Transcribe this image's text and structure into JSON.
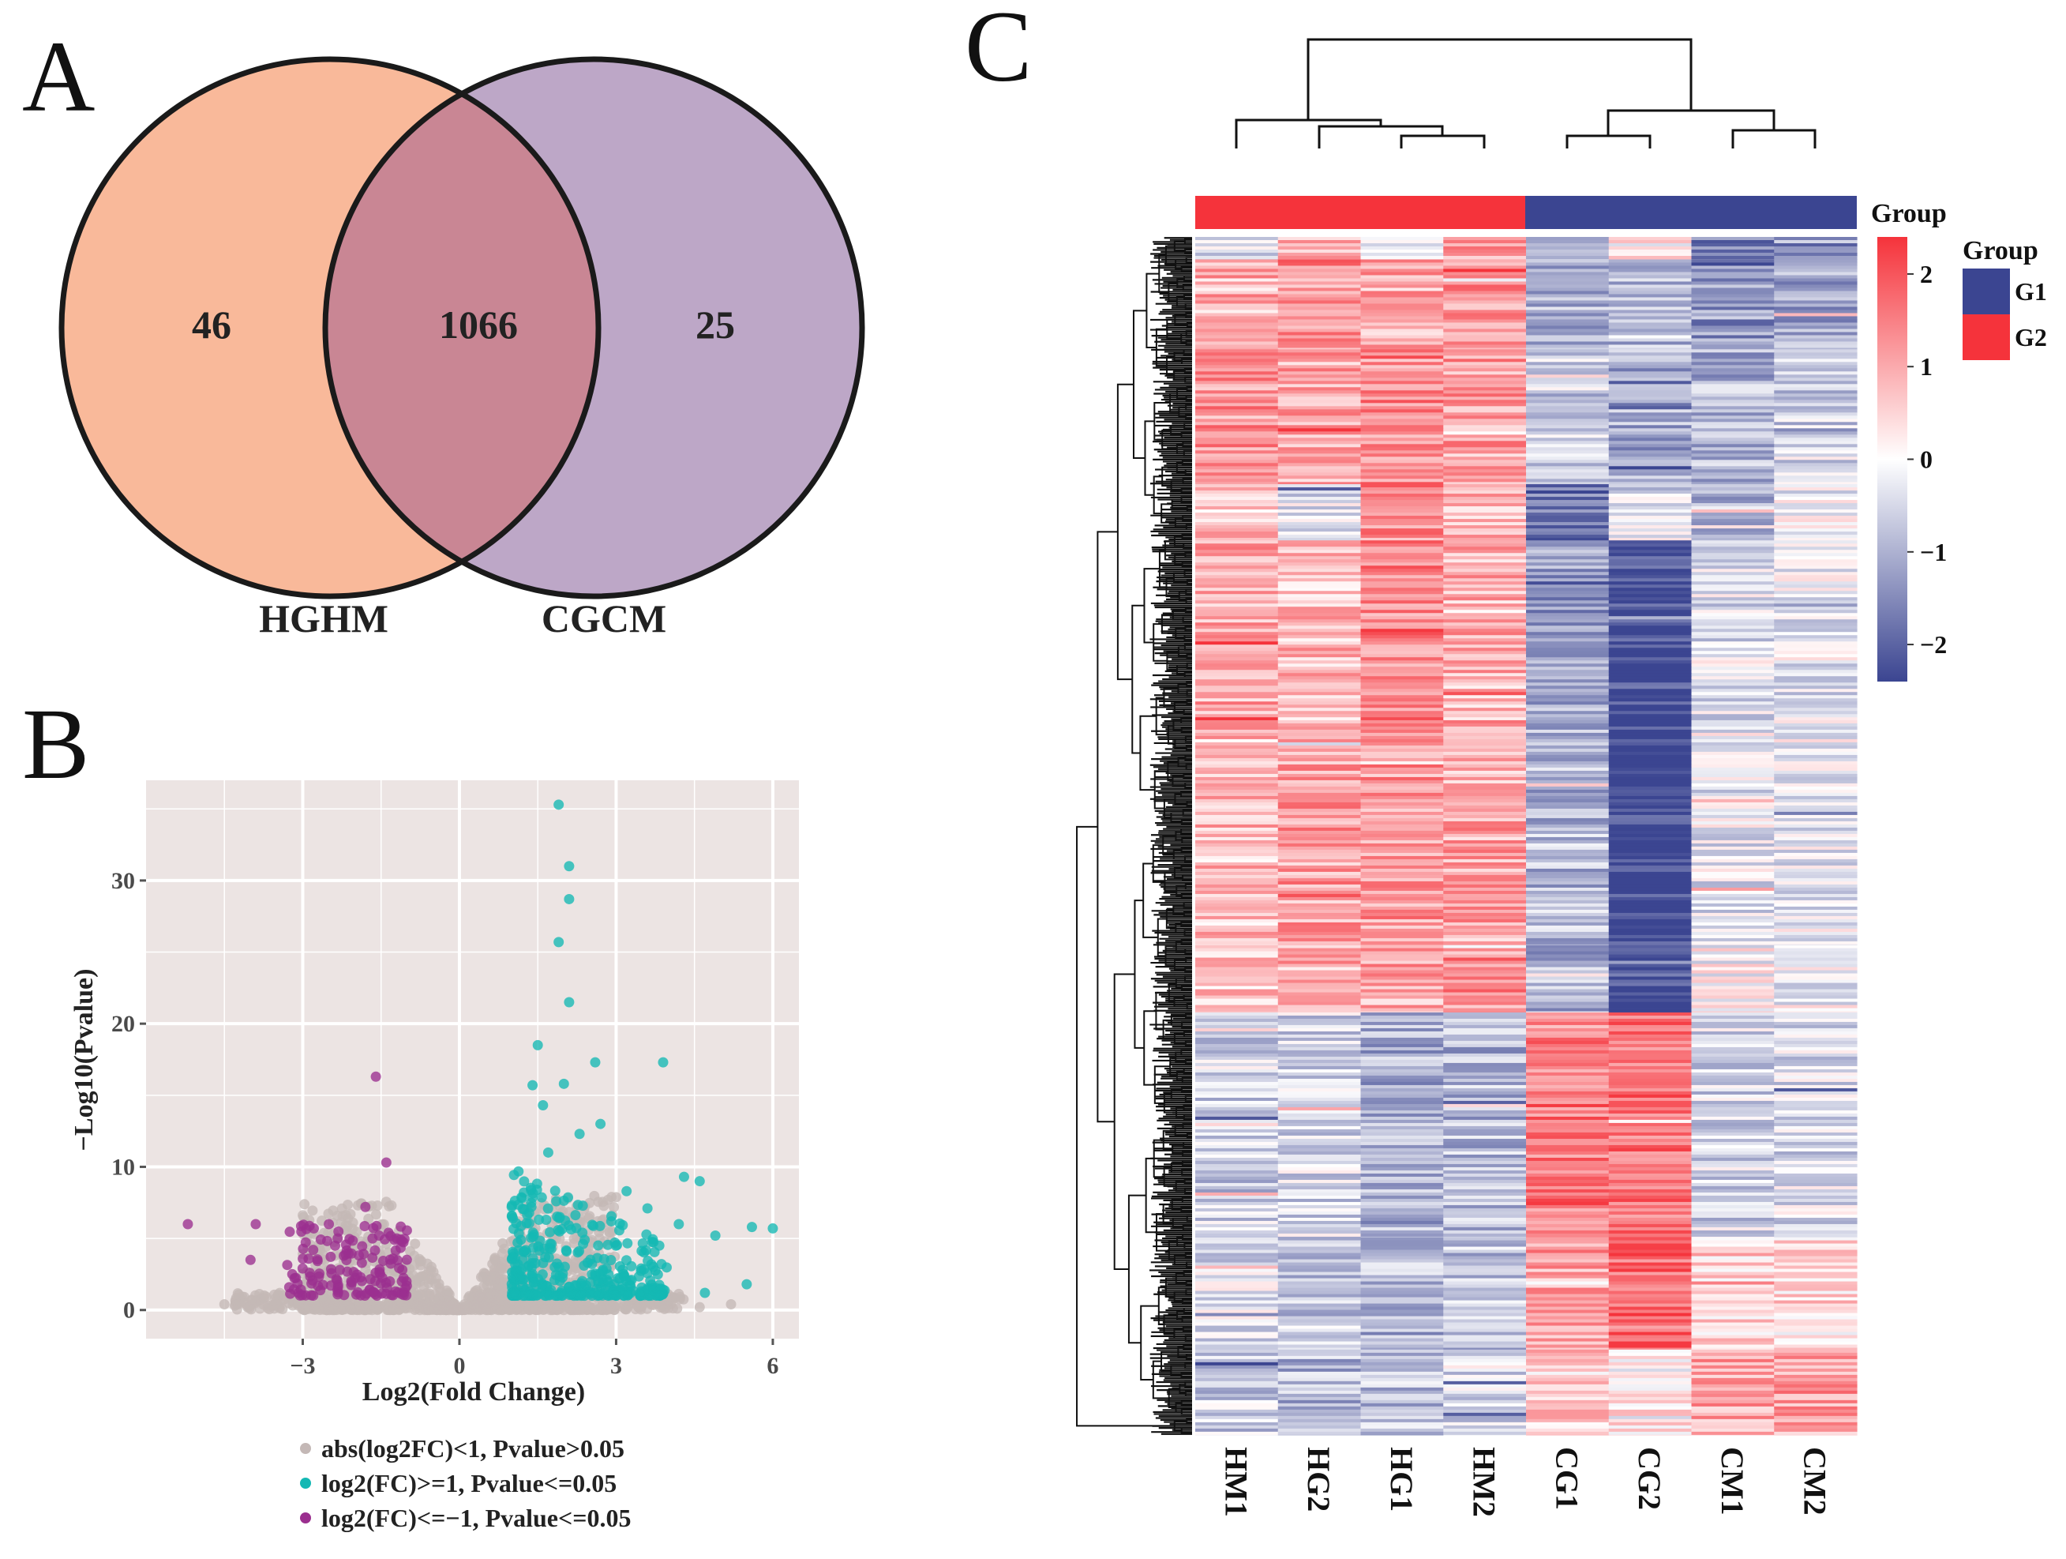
{
  "panels": {
    "a": "A",
    "b": "B",
    "c": "C"
  },
  "colors": {
    "hghm_fill": "#f9b99a",
    "cgcm_fill": "#bda7c7",
    "overlap_fill": "#c98694",
    "plot_bg": "#ece4e3",
    "grid": "#ffffff",
    "not_sig": "#c4b8b6",
    "up": "#14b8b4",
    "down": "#9b2f8f",
    "high": "#f5333b",
    "mid": "#ffffff",
    "low": "#3b4591",
    "g1": "#3b4591",
    "g2": "#f5333b"
  },
  "chart_data": [
    {
      "type": "venn",
      "sets": [
        {
          "name": "HGHM",
          "only": 46
        },
        {
          "name": "CGCM",
          "only": 25
        }
      ],
      "intersection": 1066,
      "labels": {
        "left_only": "46",
        "both": "1066",
        "right_only": "25",
        "left_set": "HGHM",
        "right_set": "CGCM"
      }
    },
    {
      "type": "scatter",
      "title": "",
      "xlabel": "Log2(Fold Change)",
      "ylabel": "−Log10(Pvalue)",
      "xlim": [
        -6,
        6.5
      ],
      "ylim": [
        -2,
        37
      ],
      "xticks": [
        -3,
        0,
        3,
        6
      ],
      "yticks": [
        0,
        10,
        20,
        30
      ],
      "xtick_labels": [
        "−3",
        "0",
        "3",
        "6"
      ],
      "ytick_labels": [
        "0",
        "10",
        "20",
        "30"
      ],
      "legend": [
        "abs(log2FC)<1, Pvalue>0.05",
        "log2(FC)>=1, Pvalue<=0.05",
        "log2(FC)<=−1, Pvalue<=0.05"
      ],
      "highlight_points": {
        "up": [
          [
            1.9,
            35.3
          ],
          [
            2.1,
            31
          ],
          [
            2.1,
            28.7
          ],
          [
            1.9,
            25.7
          ],
          [
            2.1,
            21.5
          ],
          [
            1.5,
            18.5
          ],
          [
            2.6,
            17.3
          ],
          [
            3.9,
            17.3
          ],
          [
            1.4,
            15.7
          ],
          [
            2.0,
            15.8
          ],
          [
            1.6,
            14.3
          ],
          [
            2.7,
            13.0
          ],
          [
            2.3,
            12.3
          ],
          [
            4.3,
            9.3
          ],
          [
            4.6,
            9.0
          ],
          [
            3.2,
            8.3
          ],
          [
            5.6,
            5.8
          ],
          [
            6.0,
            5.7
          ],
          [
            4.9,
            5.2
          ],
          [
            4.2,
            6.0
          ],
          [
            5.5,
            1.8
          ],
          [
            4.7,
            1.2
          ],
          [
            3.6,
            7.1
          ],
          [
            1.7,
            11.0
          ]
        ],
        "down": [
          [
            -1.6,
            16.3
          ],
          [
            -1.4,
            10.3
          ],
          [
            -3.9,
            6.0
          ],
          [
            -5.2,
            6.0
          ],
          [
            -4.0,
            3.5
          ],
          [
            -2.8,
            4.2
          ],
          [
            -1.2,
            5.0
          ],
          [
            -2.5,
            6.0
          ],
          [
            -1.8,
            7.2
          ],
          [
            -3.2,
            2.5
          ],
          [
            -1.1,
            4.8
          ]
        ],
        "not_sig": [
          [
            -4.5,
            0.4
          ],
          [
            -4.3,
            0.3
          ],
          [
            -3.9,
            0.6
          ],
          [
            -3.5,
            0.4
          ],
          [
            -1.3,
            7.3
          ],
          [
            4.0,
            0.6
          ],
          [
            4.6,
            0.2
          ],
          [
            5.2,
            0.4
          ]
        ]
      },
      "clusters": {
        "not_sig": {
          "x_range": [
            -3.0,
            3.0
          ],
          "y_max_at_edge": 8
        },
        "up": {
          "x_range": [
            1.0,
            4.0
          ],
          "y_range": [
            1,
            10
          ],
          "n": 360
        },
        "down": {
          "x_range": [
            -3.3,
            -1.0
          ],
          "y_range": [
            1,
            6
          ],
          "n": 140
        }
      }
    },
    {
      "type": "heatmap",
      "columns": [
        "HM1",
        "HG2",
        "HG1",
        "HM2",
        "CG1",
        "CG2",
        "CM1",
        "CM2"
      ],
      "column_groups": [
        "G2",
        "G2",
        "G2",
        "G2",
        "G1",
        "G1",
        "G1",
        "G1"
      ],
      "scale": {
        "min": -2.4,
        "max": 2.4,
        "ticks": [
          2,
          1,
          0,
          -1,
          -2
        ],
        "tick_labels": [
          "2",
          "1",
          "0",
          "−1",
          "−2"
        ]
      },
      "legend_title": "Group",
      "legend_items": [
        {
          "label": "G1",
          "color_key": "g1"
        },
        {
          "label": "G2",
          "color_key": "g2"
        }
      ],
      "rows_total": 1066,
      "row_blocks": [
        {
          "rows": 20,
          "values": [
            -0.4,
            1.0,
            0.1,
            1.2,
            -1.0,
            0.2,
            -1.6,
            -1.5
          ]
        },
        {
          "rows": 80,
          "values": [
            0.9,
            1.3,
            1.0,
            1.2,
            -0.9,
            -0.9,
            -1.3,
            -1.1
          ]
        },
        {
          "rows": 120,
          "values": [
            1.2,
            1.0,
            1.3,
            1.1,
            -0.6,
            -1.1,
            -1.0,
            -0.6
          ]
        },
        {
          "rows": 50,
          "values": [
            0.7,
            -0.4,
            1.3,
            0.9,
            -1.8,
            -0.4,
            -0.9,
            -0.2
          ]
        },
        {
          "rows": 160,
          "values": [
            1.0,
            0.8,
            1.4,
            0.9,
            -1.2,
            -2.4,
            -0.4,
            -0.3
          ]
        },
        {
          "rows": 200,
          "values": [
            0.8,
            1.1,
            1.2,
            1.0,
            -0.9,
            -2.5,
            -0.3,
            -0.2
          ]
        },
        {
          "rows": 60,
          "values": [
            0.6,
            0.9,
            1.0,
            1.3,
            -1.0,
            -2.3,
            0.0,
            -0.2
          ]
        },
        {
          "rows": 200,
          "values": [
            -0.6,
            -0.5,
            -1.0,
            -0.9,
            1.6,
            1.6,
            -0.5,
            -0.4
          ]
        },
        {
          "rows": 100,
          "values": [
            -0.4,
            -0.7,
            -0.9,
            -0.8,
            1.0,
            1.7,
            0.6,
            0.4
          ]
        },
        {
          "rows": 76,
          "values": [
            -0.6,
            -0.9,
            -0.8,
            -0.4,
            0.6,
            0.2,
            1.0,
            1.1
          ]
        }
      ]
    }
  ]
}
